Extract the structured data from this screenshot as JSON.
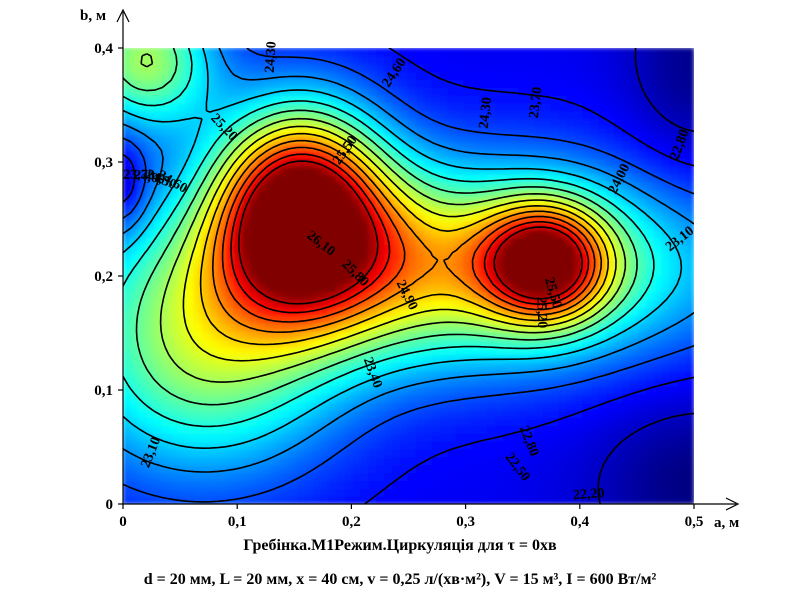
{
  "chart_data": {
    "type": "heatmap",
    "subtype": "contour",
    "title": "Гребінка.М1Режим.Циркуляція для τ = 0хв",
    "subtitle": "d = 20 мм, L = 20 мм, x = 40 см, v = 0,25 л/(хв·м²), V = 15 м³, I = 600 Вт/м²",
    "xlabel": "a, м",
    "ylabel": "b, м",
    "xlim": [
      0,
      0.5
    ],
    "ylim": [
      0,
      0.4
    ],
    "x_ticks": [
      "0",
      "0,1",
      "0,2",
      "0,3",
      "0,4",
      "0,5"
    ],
    "y_ticks": [
      "0",
      "0,1",
      "0,2",
      "0,3",
      "0,4"
    ],
    "colormap": "jet",
    "value_range": [
      21.9,
      26.4
    ],
    "grid": false,
    "contour_labels": [
      {
        "text": "24,30",
        "x": 0.13,
        "y": 0.392
      },
      {
        "text": "24,60",
        "x": 0.238,
        "y": 0.378
      },
      {
        "text": "25,20",
        "x": 0.088,
        "y": 0.33
      },
      {
        "text": "25,50",
        "x": 0.195,
        "y": 0.31
      },
      {
        "text": "26,10",
        "x": 0.173,
        "y": 0.228
      },
      {
        "text": "25,80",
        "x": 0.203,
        "y": 0.202
      },
      {
        "text": "24,90",
        "x": 0.248,
        "y": 0.183
      },
      {
        "text": "24,30",
        "x": 0.318,
        "y": 0.343
      },
      {
        "text": "23,70",
        "x": 0.362,
        "y": 0.352
      },
      {
        "text": "24,00",
        "x": 0.435,
        "y": 0.285
      },
      {
        "text": "22,80",
        "x": 0.488,
        "y": 0.315
      },
      {
        "text": "23,10",
        "x": 0.488,
        "y": 0.232
      },
      {
        "text": "25,50",
        "x": 0.376,
        "y": 0.185
      },
      {
        "text": "25,20",
        "x": 0.366,
        "y": 0.168
      },
      {
        "text": "23,40",
        "x": 0.218,
        "y": 0.115
      },
      {
        "text": "22,80",
        "x": 0.355,
        "y": 0.055
      },
      {
        "text": "22,50",
        "x": 0.345,
        "y": 0.032
      },
      {
        "text": "22,20",
        "x": 0.408,
        "y": 0.008
      },
      {
        "text": "23,10",
        "x": 0.025,
        "y": 0.045
      },
      {
        "text": "23,70",
        "x": 0.014,
        "y": 0.288
      },
      {
        "text": "24,00",
        "x": 0.023,
        "y": 0.286
      },
      {
        "text": "24,30",
        "x": 0.033,
        "y": 0.284
      },
      {
        "text": "24,60",
        "x": 0.043,
        "y": 0.282
      }
    ]
  }
}
